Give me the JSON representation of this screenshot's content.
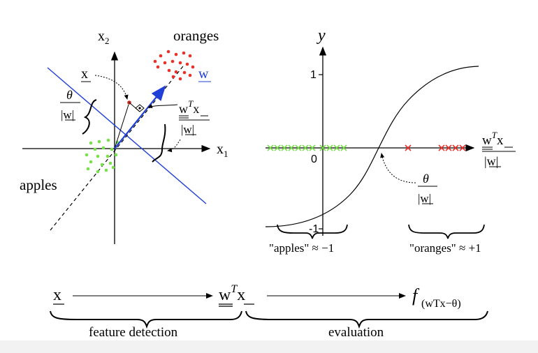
{
  "left_plot": {
    "axis_x_label": "x",
    "axis_x_sub": "1",
    "axis_y_label": "x",
    "axis_y_sub": "2",
    "class_top": "oranges",
    "class_bottom": "apples",
    "vec_x": "x",
    "vec_w": "w",
    "theta": "θ",
    "norm_w": "|w|",
    "wTx_num": "wTx",
    "wTx_den": "|w|",
    "colors": {
      "oranges": "#e8312a",
      "apples": "#79e04c",
      "decision_line": "#1f3fd6",
      "w_vector": "#1f3fd6"
    }
  },
  "right_plot": {
    "y_label": "y",
    "tick_1": "1",
    "tick_0": "0",
    "tick_m1": "-1",
    "x_label_num": "wTx",
    "x_label_den": "|w|",
    "theta": "θ",
    "norm_w": "|w|",
    "apples_note": "\"apples\" ≈ −1",
    "oranges_note": "\"oranges\" ≈ +1",
    "cross_mark": "×"
  },
  "pipeline": {
    "step_x": "x",
    "step_wTx_w": "w",
    "step_wTx_T": "T",
    "step_wTx_x": "x",
    "step_f": "f",
    "f_subscript": "(wTx−θ)",
    "stage1": "feature detection",
    "stage2": "evaluation"
  }
}
